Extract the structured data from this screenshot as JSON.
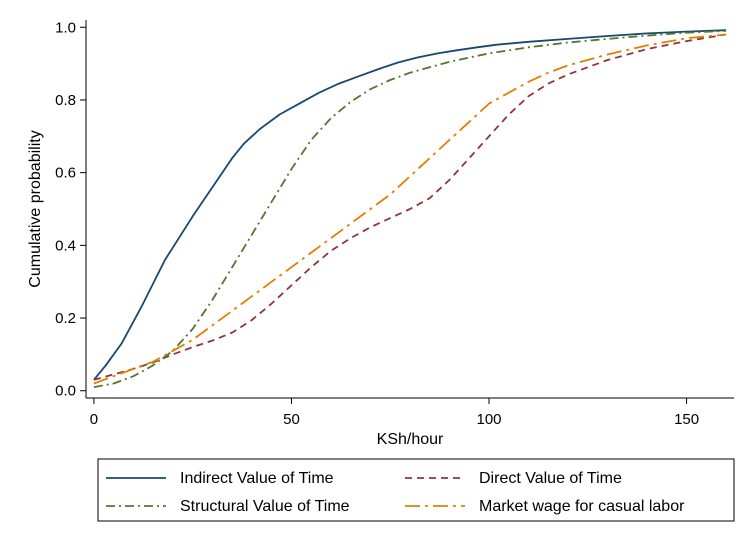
{
  "chart_data": {
    "type": "line",
    "title": "",
    "xlabel": "KSh/hour",
    "ylabel": "Cumulative probability",
    "xlim": [
      -2,
      162
    ],
    "ylim": [
      -0.02,
      1.02
    ],
    "x_ticks": [
      0,
      50,
      100,
      150
    ],
    "y_ticks": [
      0.0,
      0.2,
      0.4,
      0.6,
      0.8,
      1.0
    ],
    "x_tick_labels": [
      "0",
      "50",
      "100",
      "150"
    ],
    "y_tick_labels": [
      "0.0",
      "0.2",
      "0.4",
      "0.6",
      "0.8",
      "1.0"
    ],
    "grid": false,
    "legend_position": "bottom",
    "series": [
      {
        "name": "Indirect Value of Time",
        "color": "#1a476f",
        "dash": "solid",
        "x": [
          0,
          3,
          7,
          12,
          18,
          25,
          30,
          35,
          38,
          42,
          47,
          52,
          57,
          62,
          67,
          72,
          77,
          82,
          87,
          92,
          97,
          102,
          110,
          120,
          130,
          140,
          150,
          160
        ],
        "y": [
          0.03,
          0.07,
          0.13,
          0.23,
          0.36,
          0.48,
          0.56,
          0.64,
          0.68,
          0.72,
          0.76,
          0.79,
          0.82,
          0.845,
          0.865,
          0.885,
          0.903,
          0.917,
          0.928,
          0.937,
          0.945,
          0.952,
          0.96,
          0.968,
          0.976,
          0.983,
          0.988,
          0.992
        ]
      },
      {
        "name": "Direct Value of Time",
        "color": "#90353b",
        "dash": "dash",
        "x": [
          0,
          5,
          10,
          15,
          20,
          25,
          30,
          35,
          40,
          45,
          50,
          55,
          60,
          65,
          70,
          75,
          80,
          85,
          90,
          95,
          100,
          105,
          110,
          115,
          120,
          130,
          140,
          150,
          160
        ],
        "y": [
          0.03,
          0.045,
          0.06,
          0.078,
          0.1,
          0.12,
          0.138,
          0.16,
          0.195,
          0.24,
          0.29,
          0.34,
          0.385,
          0.42,
          0.45,
          0.475,
          0.5,
          0.53,
          0.58,
          0.64,
          0.7,
          0.76,
          0.81,
          0.845,
          0.87,
          0.91,
          0.94,
          0.962,
          0.98
        ]
      },
      {
        "name": "Structural Value of Time",
        "color": "#55752f",
        "dash": "dashdot",
        "x": [
          0,
          5,
          10,
          15,
          20,
          25,
          30,
          35,
          40,
          45,
          50,
          55,
          60,
          65,
          70,
          75,
          80,
          90,
          100,
          110,
          120,
          130,
          140,
          150,
          160
        ],
        "y": [
          0.01,
          0.02,
          0.04,
          0.07,
          0.11,
          0.17,
          0.25,
          0.34,
          0.43,
          0.52,
          0.61,
          0.69,
          0.75,
          0.795,
          0.83,
          0.855,
          0.875,
          0.905,
          0.928,
          0.945,
          0.958,
          0.968,
          0.977,
          0.985,
          0.99
        ]
      },
      {
        "name": "Market wage for casual labor",
        "color": "#e37e00",
        "dash": "longdash",
        "x": [
          0,
          5,
          10,
          15,
          20,
          25,
          30,
          35,
          40,
          45,
          50,
          55,
          60,
          65,
          70,
          75,
          80,
          85,
          90,
          95,
          100,
          105,
          110,
          115,
          120,
          130,
          140,
          150,
          160
        ],
        "y": [
          0.02,
          0.04,
          0.06,
          0.08,
          0.11,
          0.14,
          0.18,
          0.22,
          0.26,
          0.3,
          0.34,
          0.38,
          0.42,
          0.46,
          0.5,
          0.54,
          0.59,
          0.64,
          0.69,
          0.74,
          0.79,
          0.82,
          0.85,
          0.875,
          0.895,
          0.925,
          0.95,
          0.97,
          0.98
        ]
      }
    ]
  }
}
